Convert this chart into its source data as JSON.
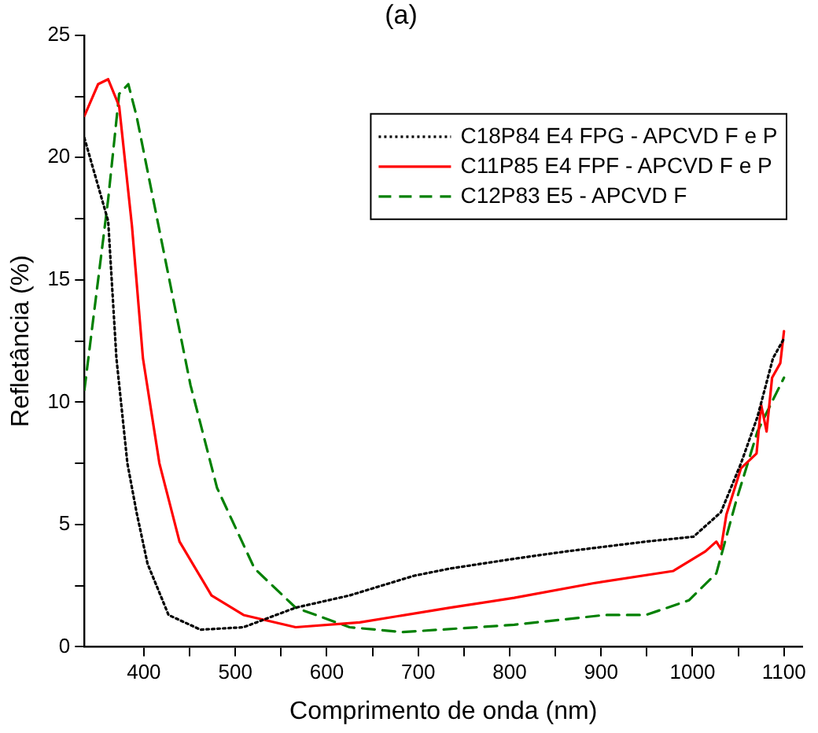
{
  "chart_data": {
    "type": "line",
    "title": "(a)",
    "xlabel": "Comprimento de onda (nm)",
    "ylabel": "Refletância (%)",
    "xlim": [
      335,
      1120
    ],
    "ylim": [
      0,
      25
    ],
    "xticks": [
      400,
      {
        "value": 450,
        "label": null
      },
      500,
      {
        "value": 550,
        "label": null
      },
      600,
      {
        "value": 650,
        "label": null
      },
      700,
      {
        "value": 750,
        "label": null
      },
      800,
      {
        "value": 850,
        "label": null
      },
      900,
      {
        "value": 950,
        "label": null
      },
      1000,
      {
        "value": 1050,
        "label": null
      },
      1100
    ],
    "yticks": [
      0,
      {
        "value": 2.5,
        "label": null
      },
      5,
      {
        "value": 7.5,
        "label": null
      },
      10,
      {
        "value": 12.5,
        "label": null
      },
      15,
      {
        "value": 17.5,
        "label": null
      },
      20,
      {
        "value": 22.5,
        "label": null
      },
      25
    ],
    "grid": false,
    "legend": "top right",
    "marker": "none",
    "series": [
      {
        "name": "C18P84 E4 FPG - APCVD F e P",
        "color": "#000000",
        "line_style": "dotted",
        "x": [
          335,
          361,
          370,
          382,
          392,
          404,
          427,
          462,
          509,
          566,
          625,
          695,
          735,
          805,
          862,
          949,
          1001,
          1031,
          1053,
          1071,
          1088,
          1100
        ],
        "values": [
          20.8,
          17.4,
          11.8,
          7.5,
          5.5,
          3.4,
          1.3,
          0.7,
          0.8,
          1.6,
          2.1,
          2.9,
          3.2,
          3.6,
          3.9,
          4.3,
          4.5,
          5.5,
          7.5,
          9.4,
          11.8,
          12.6
        ]
      },
      {
        "name": "C11P85 E4 FPF - APCVD F e P",
        "color": "#ff0000",
        "line_style": "solid",
        "x": [
          335,
          350,
          361,
          373,
          387,
          399,
          417,
          439,
          474,
          509,
          566,
          636,
          735,
          805,
          892,
          979,
          1014,
          1026,
          1031,
          1037,
          1053,
          1070,
          1075,
          1081,
          1087,
          1096,
          1100
        ],
        "values": [
          21.7,
          23.0,
          23.2,
          22.1,
          17.2,
          11.8,
          7.5,
          4.3,
          2.1,
          1.3,
          0.8,
          1.0,
          1.6,
          2.0,
          2.6,
          3.1,
          3.9,
          4.3,
          4.0,
          5.4,
          7.3,
          7.9,
          9.9,
          8.8,
          11.0,
          11.6,
          12.9
        ]
      },
      {
        "name": "C12P83 E5 - APCVD F",
        "color": "#008000",
        "line_style": "dashed",
        "x": [
          335,
          361,
          373,
          383,
          392,
          422,
          451,
          480,
          521,
          566,
          625,
          683,
          805,
          904,
          949,
          996,
          1026,
          1048,
          1071,
          1088,
          1100
        ],
        "values": [
          10.5,
          18.3,
          22.6,
          23.0,
          21.7,
          16.1,
          10.7,
          6.5,
          3.2,
          1.6,
          0.8,
          0.6,
          0.9,
          1.3,
          1.3,
          1.9,
          3.0,
          6.0,
          8.8,
          10.1,
          11.0
        ]
      }
    ]
  }
}
